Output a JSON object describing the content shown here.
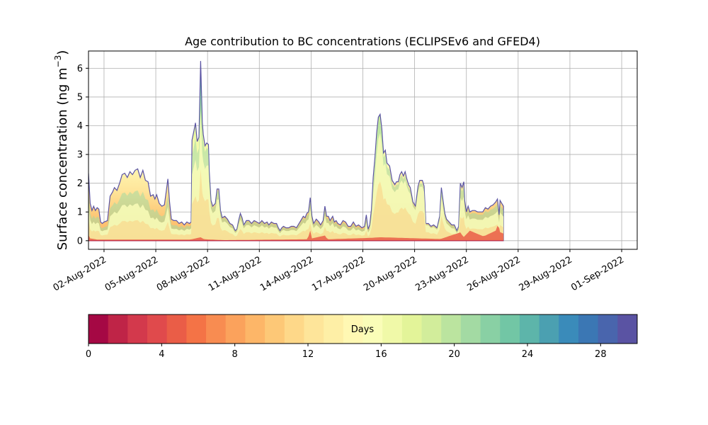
{
  "chart_data": {
    "type": "area",
    "stacked": true,
    "title": "Age contribution to BC concentrations (ECLIPSEv6 and GFED4)",
    "ylabel_main": "Surface concentration (ng m",
    "ylabel_sup": "−3",
    "ylabel_close": ")",
    "xlabel": "",
    "ylim": [
      -0.3,
      6.6
    ],
    "grid": true,
    "x_range_days": [
      -0.9,
      30.9
    ],
    "x_unit": "days since 02-Aug-2022 00:00",
    "yticks": [
      {
        "value": 0,
        "label": "0"
      },
      {
        "value": 1,
        "label": "1"
      },
      {
        "value": 2,
        "label": "2"
      },
      {
        "value": 3,
        "label": "3"
      },
      {
        "value": 4,
        "label": "4"
      },
      {
        "value": 5,
        "label": "5"
      },
      {
        "value": 6,
        "label": "6"
      }
    ],
    "xticks": [
      {
        "day": 0,
        "label": "02-Aug-2022"
      },
      {
        "day": 3,
        "label": "05-Aug-2022"
      },
      {
        "day": 6,
        "label": "08-Aug-2022"
      },
      {
        "day": 9,
        "label": "11-Aug-2022"
      },
      {
        "day": 12,
        "label": "14-Aug-2022"
      },
      {
        "day": 15,
        "label": "17-Aug-2022"
      },
      {
        "day": 18,
        "label": "20-Aug-2022"
      },
      {
        "day": 21,
        "label": "23-Aug-2022"
      },
      {
        "day": 24,
        "label": "26-Aug-2022"
      },
      {
        "day": 27,
        "label": "29-Aug-2022"
      },
      {
        "day": 30,
        "label": "01-Sep-2022"
      }
    ],
    "total": [
      [
        -1.0,
        2.05
      ],
      [
        -0.9,
        2.35
      ],
      [
        -0.8,
        1.3
      ],
      [
        -0.7,
        1.05
      ],
      [
        -0.6,
        1.2
      ],
      [
        -0.5,
        1.05
      ],
      [
        -0.4,
        1.15
      ],
      [
        -0.3,
        1.1
      ],
      [
        -0.2,
        0.65
      ],
      [
        -0.1,
        0.6
      ],
      [
        0.0,
        0.65
      ],
      [
        0.2,
        0.7
      ],
      [
        0.35,
        1.55
      ],
      [
        0.5,
        1.7
      ],
      [
        0.6,
        1.85
      ],
      [
        0.75,
        1.75
      ],
      [
        0.9,
        2.0
      ],
      [
        1.05,
        2.3
      ],
      [
        1.2,
        2.35
      ],
      [
        1.35,
        2.2
      ],
      [
        1.5,
        2.4
      ],
      [
        1.65,
        2.3
      ],
      [
        1.8,
        2.45
      ],
      [
        1.95,
        2.5
      ],
      [
        2.1,
        2.2
      ],
      [
        2.25,
        2.45
      ],
      [
        2.4,
        2.1
      ],
      [
        2.55,
        2.05
      ],
      [
        2.7,
        1.55
      ],
      [
        2.85,
        1.6
      ],
      [
        2.95,
        1.45
      ],
      [
        3.05,
        1.6
      ],
      [
        3.2,
        1.3
      ],
      [
        3.35,
        1.2
      ],
      [
        3.5,
        1.25
      ],
      [
        3.6,
        1.7
      ],
      [
        3.7,
        2.15
      ],
      [
        3.8,
        1.35
      ],
      [
        3.9,
        0.75
      ],
      [
        4.05,
        0.7
      ],
      [
        4.2,
        0.7
      ],
      [
        4.35,
        0.6
      ],
      [
        4.5,
        0.65
      ],
      [
        4.65,
        0.55
      ],
      [
        4.8,
        0.65
      ],
      [
        4.95,
        0.6
      ],
      [
        5.05,
        0.65
      ],
      [
        5.1,
        3.5
      ],
      [
        5.2,
        3.8
      ],
      [
        5.3,
        4.1
      ],
      [
        5.4,
        3.45
      ],
      [
        5.5,
        3.6
      ],
      [
        5.6,
        6.25
      ],
      [
        5.7,
        4.1
      ],
      [
        5.75,
        3.7
      ],
      [
        5.85,
        3.3
      ],
      [
        5.95,
        3.4
      ],
      [
        6.05,
        3.35
      ],
      [
        6.1,
        2.4
      ],
      [
        6.2,
        1.4
      ],
      [
        6.3,
        1.2
      ],
      [
        6.45,
        1.3
      ],
      [
        6.55,
        1.8
      ],
      [
        6.65,
        1.8
      ],
      [
        6.75,
        1.05
      ],
      [
        6.85,
        0.8
      ],
      [
        7.0,
        0.85
      ],
      [
        7.15,
        0.75
      ],
      [
        7.3,
        0.6
      ],
      [
        7.45,
        0.55
      ],
      [
        7.6,
        0.35
      ],
      [
        7.7,
        0.4
      ],
      [
        7.8,
        0.7
      ],
      [
        7.9,
        0.95
      ],
      [
        8.0,
        0.8
      ],
      [
        8.1,
        0.55
      ],
      [
        8.25,
        0.7
      ],
      [
        8.4,
        0.7
      ],
      [
        8.55,
        0.6
      ],
      [
        8.7,
        0.7
      ],
      [
        8.85,
        0.65
      ],
      [
        9.0,
        0.6
      ],
      [
        9.15,
        0.7
      ],
      [
        9.3,
        0.6
      ],
      [
        9.45,
        0.65
      ],
      [
        9.55,
        0.55
      ],
      [
        9.7,
        0.65
      ],
      [
        9.85,
        0.6
      ],
      [
        10.0,
        0.6
      ],
      [
        10.1,
        0.45
      ],
      [
        10.2,
        0.35
      ],
      [
        10.3,
        0.45
      ],
      [
        10.4,
        0.5
      ],
      [
        10.55,
        0.45
      ],
      [
        10.7,
        0.45
      ],
      [
        10.85,
        0.5
      ],
      [
        11.0,
        0.5
      ],
      [
        11.15,
        0.45
      ],
      [
        11.3,
        0.6
      ],
      [
        11.45,
        0.75
      ],
      [
        11.55,
        0.85
      ],
      [
        11.65,
        0.8
      ],
      [
        11.75,
        0.95
      ],
      [
        11.85,
        1.0
      ],
      [
        11.95,
        1.5
      ],
      [
        12.05,
        0.85
      ],
      [
        12.15,
        0.6
      ],
      [
        12.3,
        0.75
      ],
      [
        12.45,
        0.65
      ],
      [
        12.55,
        0.55
      ],
      [
        12.7,
        0.7
      ],
      [
        12.8,
        1.2
      ],
      [
        12.9,
        0.85
      ],
      [
        13.0,
        0.85
      ],
      [
        13.1,
        0.7
      ],
      [
        13.25,
        0.85
      ],
      [
        13.35,
        0.65
      ],
      [
        13.45,
        0.7
      ],
      [
        13.55,
        0.6
      ],
      [
        13.7,
        0.55
      ],
      [
        13.85,
        0.7
      ],
      [
        14.0,
        0.65
      ],
      [
        14.15,
        0.5
      ],
      [
        14.3,
        0.5
      ],
      [
        14.45,
        0.65
      ],
      [
        14.6,
        0.5
      ],
      [
        14.75,
        0.55
      ],
      [
        14.85,
        0.5
      ],
      [
        14.95,
        0.45
      ],
      [
        15.1,
        0.5
      ],
      [
        15.2,
        0.9
      ],
      [
        15.3,
        0.4
      ],
      [
        15.4,
        0.55
      ],
      [
        15.5,
        1.1
      ],
      [
        15.6,
        2.2
      ],
      [
        15.7,
        2.9
      ],
      [
        15.8,
        3.75
      ],
      [
        15.9,
        4.3
      ],
      [
        16.0,
        4.4
      ],
      [
        16.1,
        3.9
      ],
      [
        16.2,
        3.05
      ],
      [
        16.3,
        3.15
      ],
      [
        16.4,
        2.7
      ],
      [
        16.55,
        2.6
      ],
      [
        16.7,
        2.1
      ],
      [
        16.85,
        1.95
      ],
      [
        16.95,
        2.05
      ],
      [
        17.05,
        2.05
      ],
      [
        17.15,
        2.3
      ],
      [
        17.25,
        2.4
      ],
      [
        17.35,
        2.25
      ],
      [
        17.45,
        2.4
      ],
      [
        17.55,
        2.15
      ],
      [
        17.65,
        1.95
      ],
      [
        17.75,
        1.85
      ],
      [
        17.9,
        1.35
      ],
      [
        18.05,
        1.2
      ],
      [
        18.2,
        1.9
      ],
      [
        18.3,
        2.1
      ],
      [
        18.45,
        2.1
      ],
      [
        18.55,
        1.9
      ],
      [
        18.65,
        0.6
      ],
      [
        18.8,
        0.6
      ],
      [
        18.95,
        0.5
      ],
      [
        19.1,
        0.55
      ],
      [
        19.2,
        0.5
      ],
      [
        19.3,
        0.45
      ],
      [
        19.45,
        0.85
      ],
      [
        19.55,
        1.85
      ],
      [
        19.65,
        1.4
      ],
      [
        19.75,
        0.95
      ],
      [
        19.85,
        0.75
      ],
      [
        20.0,
        0.65
      ],
      [
        20.15,
        0.55
      ],
      [
        20.3,
        0.55
      ],
      [
        20.45,
        0.35
      ],
      [
        20.55,
        0.5
      ],
      [
        20.65,
        2.0
      ],
      [
        20.75,
        1.85
      ],
      [
        20.85,
        2.05
      ],
      [
        20.9,
        1.4
      ],
      [
        21.0,
        1.0
      ],
      [
        21.1,
        1.2
      ],
      [
        21.2,
        1.0
      ],
      [
        21.35,
        1.05
      ],
      [
        21.5,
        1.05
      ],
      [
        21.65,
        1.0
      ],
      [
        21.8,
        1.0
      ],
      [
        21.95,
        1.0
      ],
      [
        22.1,
        1.15
      ],
      [
        22.25,
        1.1
      ],
      [
        22.4,
        1.2
      ],
      [
        22.55,
        1.25
      ],
      [
        22.7,
        1.35
      ],
      [
        22.8,
        1.45
      ],
      [
        22.9,
        0.9
      ],
      [
        22.95,
        1.4
      ],
      [
        23.05,
        1.3
      ],
      [
        23.15,
        1.2
      ]
    ],
    "yellow_fraction": [
      [
        -1.0,
        0.55
      ],
      [
        0.3,
        0.55
      ],
      [
        3.0,
        0.5
      ],
      [
        5.0,
        0.65
      ],
      [
        6.2,
        0.8
      ],
      [
        15.4,
        0.7
      ],
      [
        16.0,
        0.85
      ],
      [
        18.7,
        0.9
      ],
      [
        20.6,
        0.75
      ],
      [
        23.2,
        0.7
      ]
    ],
    "red_band": [
      [
        -1.0,
        0.05
      ],
      [
        -0.9,
        0.2
      ],
      [
        -0.8,
        0.08
      ],
      [
        -0.4,
        0.04
      ],
      [
        5.0,
        0.04
      ],
      [
        5.6,
        0.12
      ],
      [
        5.8,
        0.05
      ],
      [
        7.0,
        0.02
      ],
      [
        11.8,
        0.05
      ],
      [
        11.95,
        0.35
      ],
      [
        12.05,
        0.08
      ],
      [
        12.8,
        0.18
      ],
      [
        12.95,
        0.05
      ],
      [
        15.5,
        0.1
      ],
      [
        16.0,
        0.12
      ],
      [
        19.5,
        0.06
      ],
      [
        20.7,
        0.3
      ],
      [
        20.8,
        0.1
      ],
      [
        21.2,
        0.35
      ],
      [
        22.0,
        0.15
      ],
      [
        22.7,
        0.35
      ],
      [
        22.85,
        0.6
      ],
      [
        22.95,
        0.3
      ],
      [
        23.15,
        0.25
      ]
    ],
    "colorbar": {
      "label": "Days",
      "min": 0,
      "max": 30,
      "ticks": [
        {
          "value": 0,
          "label": "0"
        },
        {
          "value": 4,
          "label": "4"
        },
        {
          "value": 8,
          "label": "8"
        },
        {
          "value": 12,
          "label": "12"
        },
        {
          "value": 16,
          "label": "16"
        },
        {
          "value": 20,
          "label": "20"
        },
        {
          "value": 24,
          "label": "24"
        },
        {
          "value": 28,
          "label": "28"
        }
      ],
      "colors": [
        "#a50844",
        "#bf2447",
        "#d3394c",
        "#e04a4c",
        "#ea5d47",
        "#f47346",
        "#f88c51",
        "#fba25c",
        "#fdb668",
        "#fdc877",
        "#fed889",
        "#fee59a",
        "#feefa6",
        "#fff8b3",
        "#fafdb8",
        "#f0f9a8",
        "#e3f499",
        "#d2ed9b",
        "#bbe49f",
        "#a3daa3",
        "#89d0a4",
        "#72c6a5",
        "#5db5aa",
        "#4ba0b1",
        "#3a8bba",
        "#3b77b4",
        "#4965ad",
        "#5a53a3"
      ]
    }
  }
}
